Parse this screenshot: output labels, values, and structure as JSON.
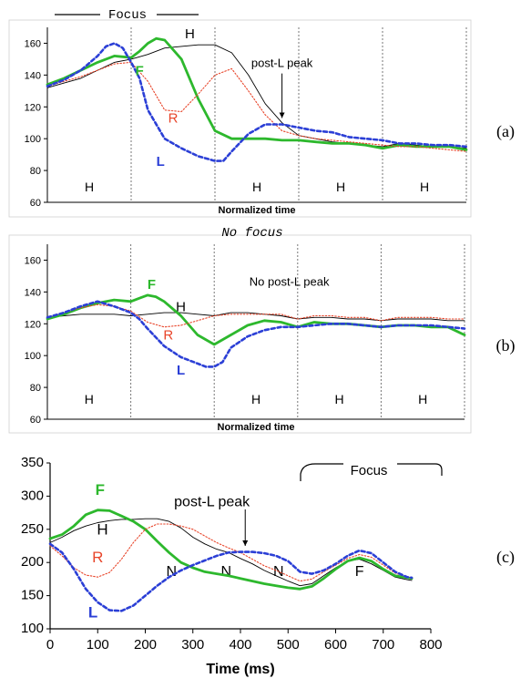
{
  "chart_data": [
    {
      "type": "line",
      "panel_label": "(a)",
      "header": "Focus",
      "xlabel": "Normalized time",
      "ylim": [
        60,
        170
      ],
      "yticks": [
        60,
        80,
        100,
        120,
        140,
        160
      ],
      "xlim": [
        0,
        1
      ],
      "segment_boundaries": [
        0.2,
        0.4,
        0.6,
        0.8
      ],
      "segment_labels": [
        {
          "text": "H",
          "x": 0.1
        },
        {
          "text": "H",
          "x": 0.5
        },
        {
          "text": "H",
          "x": 0.7
        },
        {
          "text": "H",
          "x": 0.9
        }
      ],
      "series": [
        {
          "name": "H",
          "color": "#000000",
          "style": "thin",
          "x": [
            0,
            0.04,
            0.08,
            0.12,
            0.16,
            0.2,
            0.24,
            0.28,
            0.32,
            0.36,
            0.4,
            0.44,
            0.48,
            0.52,
            0.56,
            0.6,
            0.64,
            0.68,
            0.72,
            0.76,
            0.8,
            0.84,
            0.88,
            0.92,
            0.96,
            1
          ],
          "y": [
            132,
            135,
            138,
            143,
            148,
            150,
            153,
            157,
            158,
            159,
            159,
            154,
            140,
            122,
            110,
            102,
            100,
            98,
            97,
            96,
            95,
            97,
            96,
            95,
            95,
            94
          ]
        },
        {
          "name": "F",
          "color": "#2db82d",
          "style": "thick",
          "x": [
            0,
            0.04,
            0.08,
            0.12,
            0.16,
            0.2,
            0.22,
            0.24,
            0.26,
            0.28,
            0.32,
            0.36,
            0.4,
            0.44,
            0.48,
            0.52,
            0.56,
            0.6,
            0.64,
            0.68,
            0.72,
            0.76,
            0.8,
            0.84,
            0.88,
            0.92,
            0.96,
            1
          ],
          "y": [
            134,
            138,
            143,
            148,
            152,
            151,
            155,
            160,
            163,
            162,
            150,
            125,
            105,
            100,
            100,
            100,
            99,
            99,
            98,
            97,
            97,
            96,
            94,
            96,
            95,
            95,
            95,
            93
          ]
        },
        {
          "name": "R",
          "color": "#e8452a",
          "style": "dotted",
          "x": [
            0,
            0.04,
            0.08,
            0.12,
            0.16,
            0.2,
            0.24,
            0.28,
            0.32,
            0.36,
            0.4,
            0.44,
            0.48,
            0.52,
            0.56,
            0.6,
            0.64,
            0.68,
            0.72,
            0.76,
            0.8,
            0.84,
            0.88,
            0.92,
            0.96,
            1
          ],
          "y": [
            133,
            136,
            139,
            143,
            147,
            148,
            136,
            118,
            117,
            128,
            140,
            144,
            130,
            115,
            105,
            102,
            100,
            99,
            98,
            97,
            96,
            95,
            95,
            94,
            93,
            92
          ]
        },
        {
          "name": "L",
          "color": "#2b3fd6",
          "style": "dashed",
          "x": [
            0,
            0.04,
            0.08,
            0.12,
            0.14,
            0.16,
            0.18,
            0.2,
            0.22,
            0.24,
            0.28,
            0.32,
            0.36,
            0.4,
            0.42,
            0.44,
            0.48,
            0.52,
            0.56,
            0.6,
            0.64,
            0.68,
            0.72,
            0.76,
            0.8,
            0.84,
            0.88,
            0.92,
            0.96,
            1
          ],
          "y": [
            133,
            137,
            143,
            152,
            158,
            160,
            157,
            148,
            138,
            118,
            100,
            94,
            89,
            86,
            86,
            92,
            103,
            109,
            109,
            107,
            105,
            104,
            101,
            100,
            99,
            97,
            97,
            96,
            96,
            95
          ]
        }
      ],
      "annotations": [
        {
          "text": "H",
          "x": 0.34,
          "y": 163,
          "color": "#000000"
        },
        {
          "text": "F",
          "x": 0.22,
          "y": 140,
          "color": "#2db82d"
        },
        {
          "text": "R",
          "x": 0.3,
          "y": 110,
          "color": "#e8452a"
        },
        {
          "text": "L",
          "x": 0.27,
          "y": 83,
          "color": "#2b3fd6"
        },
        {
          "text": "post-L peak",
          "x": 0.56,
          "y": 145,
          "color": "#000000"
        }
      ]
    },
    {
      "type": "line",
      "panel_label": "(b)",
      "header": "No focus",
      "xlabel": "Normalized time",
      "ylim": [
        60,
        170
      ],
      "yticks": [
        60,
        80,
        100,
        120,
        140,
        160
      ],
      "xlim": [
        0,
        1
      ],
      "segment_boundaries": [
        0.2,
        0.4,
        0.6,
        0.8
      ],
      "segment_labels": [
        {
          "text": "H",
          "x": 0.1
        },
        {
          "text": "H",
          "x": 0.5
        },
        {
          "text": "H",
          "x": 0.7
        },
        {
          "text": "H",
          "x": 0.9
        }
      ],
      "series": [
        {
          "name": "H",
          "color": "#000000",
          "style": "thin",
          "x": [
            0,
            0.04,
            0.08,
            0.12,
            0.16,
            0.2,
            0.24,
            0.28,
            0.32,
            0.36,
            0.4,
            0.44,
            0.48,
            0.52,
            0.56,
            0.6,
            0.64,
            0.68,
            0.72,
            0.76,
            0.8,
            0.84,
            0.88,
            0.92,
            0.96,
            1
          ],
          "y": [
            124,
            125,
            126,
            126,
            126,
            125,
            126,
            127,
            127,
            126,
            125,
            127,
            127,
            126,
            125,
            123,
            124,
            124,
            123,
            123,
            122,
            123,
            123,
            123,
            122,
            122
          ]
        },
        {
          "name": "F",
          "color": "#2db82d",
          "style": "thick",
          "x": [
            0,
            0.04,
            0.08,
            0.12,
            0.16,
            0.2,
            0.22,
            0.24,
            0.26,
            0.28,
            0.32,
            0.36,
            0.4,
            0.44,
            0.48,
            0.52,
            0.56,
            0.6,
            0.64,
            0.68,
            0.72,
            0.76,
            0.8,
            0.84,
            0.88,
            0.92,
            0.96,
            1
          ],
          "y": [
            123,
            126,
            130,
            133,
            135,
            134,
            136,
            138,
            137,
            134,
            125,
            113,
            107,
            113,
            119,
            122,
            121,
            118,
            121,
            120,
            120,
            119,
            118,
            119,
            119,
            118,
            118,
            113
          ]
        },
        {
          "name": "R",
          "color": "#e8452a",
          "style": "dotted",
          "x": [
            0,
            0.04,
            0.08,
            0.12,
            0.16,
            0.2,
            0.24,
            0.28,
            0.32,
            0.36,
            0.4,
            0.44,
            0.48,
            0.52,
            0.56,
            0.6,
            0.64,
            0.68,
            0.72,
            0.76,
            0.8,
            0.84,
            0.88,
            0.92,
            0.96,
            1
          ],
          "y": [
            124,
            127,
            130,
            132,
            131,
            128,
            121,
            118,
            119,
            122,
            125,
            126,
            126,
            126,
            126,
            123,
            125,
            125,
            124,
            124,
            122,
            124,
            124,
            124,
            123,
            123
          ]
        },
        {
          "name": "L",
          "color": "#2b3fd6",
          "style": "dashed",
          "x": [
            0,
            0.04,
            0.08,
            0.12,
            0.16,
            0.2,
            0.22,
            0.24,
            0.28,
            0.32,
            0.36,
            0.38,
            0.4,
            0.42,
            0.44,
            0.48,
            0.52,
            0.56,
            0.6,
            0.64,
            0.68,
            0.72,
            0.76,
            0.8,
            0.84,
            0.88,
            0.92,
            0.96,
            1
          ],
          "y": [
            124,
            127,
            131,
            134,
            131,
            127,
            123,
            117,
            106,
            99,
            95,
            93,
            93,
            96,
            105,
            112,
            116,
            118,
            118,
            119,
            120,
            120,
            119,
            118,
            119,
            119,
            119,
            118,
            117
          ]
        }
      ],
      "annotations": [
        {
          "text": "H",
          "x": 0.32,
          "y": 128,
          "color": "#000000"
        },
        {
          "text": "F",
          "x": 0.25,
          "y": 142,
          "color": "#2db82d"
        },
        {
          "text": "R",
          "x": 0.29,
          "y": 110,
          "color": "#e8452a"
        },
        {
          "text": "L",
          "x": 0.32,
          "y": 88,
          "color": "#2b3fd6"
        },
        {
          "text": "No post-L peak",
          "x": 0.58,
          "y": 144,
          "color": "#000000"
        }
      ]
    },
    {
      "type": "line",
      "panel_label": "(c)",
      "header": "Focus",
      "xlabel": "Time (ms)",
      "xlim": [
        0,
        800
      ],
      "xticks": [
        0,
        100,
        200,
        300,
        400,
        500,
        600,
        700,
        800
      ],
      "ylim": [
        100,
        350
      ],
      "yticks": [
        100,
        150,
        200,
        250,
        300,
        350
      ],
      "segment_labels": [
        {
          "text": "N",
          "x": 255
        },
        {
          "text": "N",
          "x": 370
        },
        {
          "text": "N",
          "x": 480
        },
        {
          "text": "F",
          "x": 650
        }
      ],
      "series": [
        {
          "name": "H",
          "color": "#000000",
          "style": "thin",
          "x": [
            0,
            25,
            50,
            75,
            100,
            125,
            150,
            175,
            200,
            225,
            250,
            275,
            300,
            325,
            350,
            375,
            400,
            425,
            450,
            475,
            500,
            525,
            550,
            575,
            600,
            625,
            650,
            675,
            700,
            725,
            750,
            760
          ],
          "y": [
            230,
            238,
            248,
            255,
            260,
            263,
            265,
            265,
            266,
            266,
            262,
            252,
            238,
            228,
            220,
            215,
            206,
            198,
            188,
            180,
            172,
            165,
            168,
            180,
            192,
            202,
            205,
            198,
            188,
            178,
            174,
            173
          ]
        },
        {
          "name": "F",
          "color": "#2db82d",
          "style": "thick",
          "x": [
            0,
            25,
            50,
            75,
            100,
            125,
            150,
            175,
            200,
            225,
            250,
            275,
            300,
            325,
            350,
            375,
            400,
            425,
            450,
            475,
            500,
            525,
            550,
            575,
            600,
            625,
            650,
            675,
            700,
            725,
            750,
            760
          ],
          "y": [
            236,
            242,
            255,
            272,
            279,
            278,
            270,
            262,
            250,
            232,
            215,
            200,
            192,
            186,
            183,
            180,
            176,
            172,
            168,
            165,
            162,
            160,
            164,
            176,
            190,
            202,
            207,
            202,
            190,
            180,
            177,
            176
          ]
        },
        {
          "name": "R",
          "color": "#e8452a",
          "style": "dotted",
          "x": [
            0,
            25,
            50,
            75,
            100,
            125,
            150,
            175,
            200,
            225,
            250,
            275,
            300,
            325,
            350,
            375,
            400,
            425,
            450,
            475,
            500,
            525,
            550,
            575,
            600,
            625,
            650,
            675,
            700,
            725,
            750,
            760
          ],
          "y": [
            225,
            210,
            192,
            181,
            178,
            185,
            205,
            230,
            250,
            258,
            258,
            255,
            250,
            240,
            230,
            222,
            215,
            205,
            195,
            188,
            180,
            172,
            175,
            186,
            196,
            206,
            212,
            208,
            196,
            184,
            178,
            177
          ]
        },
        {
          "name": "L",
          "color": "#2b3fd6",
          "style": "dashed",
          "x": [
            0,
            25,
            50,
            75,
            100,
            125,
            150,
            175,
            200,
            225,
            250,
            275,
            300,
            325,
            350,
            375,
            400,
            425,
            450,
            475,
            500,
            525,
            550,
            575,
            600,
            625,
            650,
            675,
            700,
            725,
            750,
            760
          ],
          "y": [
            228,
            215,
            190,
            160,
            140,
            128,
            127,
            135,
            150,
            165,
            178,
            188,
            196,
            203,
            210,
            215,
            216,
            216,
            214,
            210,
            202,
            186,
            183,
            188,
            198,
            210,
            218,
            214,
            200,
            186,
            178,
            177
          ]
        }
      ],
      "annotations": [
        {
          "text": "F",
          "x": 105,
          "y": 302,
          "color": "#2db82d"
        },
        {
          "text": "H",
          "x": 110,
          "y": 242,
          "color": "#000000"
        },
        {
          "text": "R",
          "x": 100,
          "y": 200,
          "color": "#e8452a"
        },
        {
          "text": "L",
          "x": 90,
          "y": 117,
          "color": "#2b3fd6"
        },
        {
          "text": "post-L peak",
          "x": 340,
          "y": 285,
          "color": "#000000"
        }
      ]
    }
  ]
}
